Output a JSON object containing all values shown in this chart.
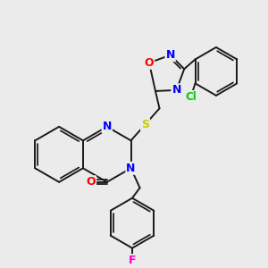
{
  "bg_color": "#ebebeb",
  "bond_color": "#1a1a1a",
  "atom_colors": {
    "N": "#0000ff",
    "O": "#ff0000",
    "S": "#cccc00",
    "F": "#ff00cc",
    "Cl": "#00cc00"
  },
  "figsize": [
    3.0,
    3.0
  ],
  "dpi": 100
}
